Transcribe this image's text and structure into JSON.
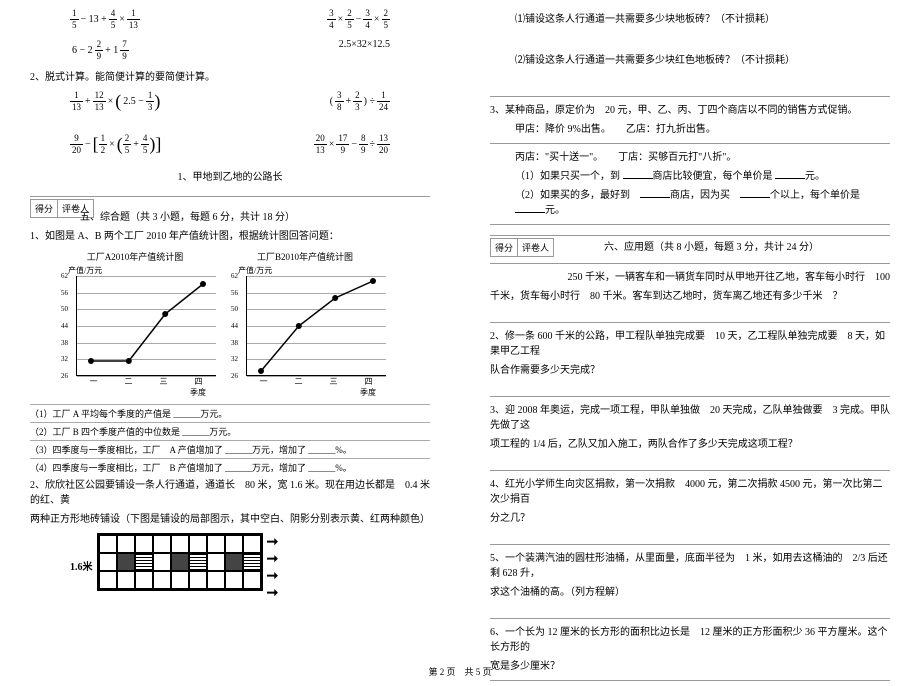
{
  "footer": "第 2 页　共 5 页",
  "left": {
    "math_rows": [
      {
        "a": {
          "parts": [
            "1/5",
            "−",
            "13",
            "+",
            "4/5",
            "×",
            "1/13"
          ]
        },
        "b": {
          "parts": [
            "3/4",
            "×",
            "2/5",
            "−",
            "3/4",
            "×",
            "2/5"
          ]
        }
      },
      {
        "a": {
          "parts": [
            "6",
            "−",
            "2",
            "2/9",
            "+",
            "1",
            "7/9"
          ]
        },
        "b": {
          "text": "2.5×32×12.5"
        }
      }
    ],
    "q2_label": "2、脱式计算。能简便计算的要简便计算。",
    "math_rows2": [
      {
        "a": {
          "parts": [
            "1/13",
            "+",
            "12/13",
            "×",
            "(",
            "2.5",
            "−",
            "1/3",
            ")"
          ]
        },
        "b": {
          "parts": [
            "(",
            "3/8",
            "+",
            "2/3",
            ")",
            "÷",
            "1/24"
          ]
        }
      },
      {
        "a": {
          "parts": [
            "9/20",
            "−",
            "[",
            "1/2",
            "×",
            "(",
            "2/5",
            "+",
            "4/5",
            ")",
            "]"
          ]
        },
        "b": {
          "parts": [
            "20/13",
            "×",
            "17/9",
            "−",
            "8/9",
            "÷",
            "13/20"
          ]
        }
      }
    ],
    "q_mid": "1、甲地到乙地的公路长",
    "score_labels": {
      "a": "得分",
      "b": "评卷人"
    },
    "section5_title": "五、综合题（共 3 小题，每题 6 分，共计 18 分）",
    "chart_q": "1、如图是 A、B 两个工厂 2010 年产值统计图，根据统计图回答问题：",
    "chartA": {
      "title": "工厂A2010年产值统计图",
      "ylabel": "产值/万元",
      "yticks": [
        "26",
        "32",
        "38",
        "44",
        "50",
        "56",
        "62"
      ],
      "xticks": [
        "一",
        "二",
        "三",
        "四"
      ],
      "xaxis": "季度",
      "points": [
        [
          0.1,
          0.15
        ],
        [
          0.37,
          0.15
        ],
        [
          0.63,
          0.62
        ],
        [
          0.9,
          0.92
        ]
      ],
      "line_color": "#000000",
      "grid_color": "#aaaaaa"
    },
    "chartB": {
      "title": "工厂B2010年产值统计图",
      "ylabel": "产值/万元",
      "yticks": [
        "26",
        "32",
        "38",
        "44",
        "50",
        "56",
        "62"
      ],
      "xticks": [
        "一",
        "二",
        "三",
        "四"
      ],
      "xaxis": "季度",
      "points": [
        [
          0.1,
          0.05
        ],
        [
          0.37,
          0.5
        ],
        [
          0.63,
          0.78
        ],
        [
          0.9,
          0.95
        ]
      ],
      "line_color": "#000000",
      "grid_color": "#aaaaaa"
    },
    "subs": [
      "（1）工厂 A 平均每个季度的产值是 ______万元。",
      "（2）工厂 B 四个季度产值的中位数是 ______万元。",
      "（3）四季度与一季度相比，工厂　A 产值增加了 ______万元，增加了 ______%。",
      "（4）四季度与一季度相比，工厂　B 产值增加了 ______万元，增加了 ______%。"
    ],
    "q_tile1": "2、欣欣社区公园要铺设一条人行通道，通道长　80 米，宽 1.6 米。现在用边长都是　0.4 米的红、黄",
    "q_tile2": "两种正方形地砖铺设（下图是铺设的局部图示，其中空白、阴影分别表示黄、红两种颜色）",
    "tile_label": "1.6米",
    "tile_pattern": [
      [
        "w",
        "w",
        "w",
        "w",
        "w",
        "w",
        "w",
        "w",
        "w"
      ],
      [
        "w",
        "d",
        "h",
        "w",
        "d",
        "h",
        "w",
        "d",
        "h"
      ],
      [
        "w",
        "w",
        "w",
        "w",
        "w",
        "w",
        "w",
        "w",
        "w"
      ]
    ]
  },
  "right": {
    "q_r1": "⑴铺设这条人行通道一共需要多少块地板砖？（不计损耗）",
    "q_r2": "⑵铺设这条人行通道一共需要多少块红色地板砖？（不计损耗）",
    "q_r3a": "3、某种商品，原定价为　20 元，甲、乙、丙、丁四个商店以不同的销售方式促销。",
    "q_r3b": "甲店：降价 9%出售。　　乙店：打九折出售。",
    "q_r3c": "丙店：\"买十送一\"。　　丁店：买够百元打\"八折\"。",
    "q_r3d": "（1）如果只买一个，到 ______商店比较便宜，每个单价是 ______元。",
    "q_r3e": "（2）如果买的多，最好到　______商店，因为买　______个以上，每个单价是　______元。",
    "score_labels": {
      "a": "得分",
      "b": "评卷人"
    },
    "section6_title": "六、应用题（共 8 小题，每题 3 分，共计 24 分）",
    "q6_1a": "250 千米，一辆客车和一辆货车同时从甲地开往乙地，客车每小时行　100",
    "q6_1b": "千米，货车每小时行　80 千米。客车到达乙地时，货车离乙地还有多少千米　？",
    "q6_2": "2、修一条 600 千米的公路，甲工程队单独完成要　10 天，乙工程队单独完成要　8 天，如果甲乙工程",
    "q6_2b": "队合作需要多少天完成？",
    "q6_3": "3、迎 2008 年奥运，完成一项工程，甲队单独做　20 天完成，乙队单独做要　3 完成。甲队先做了这",
    "q6_3b": "项工程的 1/4 后，乙队又加入施工，两队合作了多少天完成这项工程？",
    "q6_4": "4、红光小学师生向灾区捐款，第一次捐款　4000 元，第二次捐款 4500 元，第一次比第二次少捐百",
    "q6_4b": "分之几？",
    "q6_5": "5、一个装满汽油的圆柱形油桶，从里面量，底面半径为　1 米，如用去这桶油的　2/3 后还剩 628 升，",
    "q6_5b": "求这个油桶的高。（列方程解）",
    "q6_6": "6、一个长为 12 厘米的长方形的面积比边长是　12 厘米的正方形面积少 36 平方厘米。这个长方形的",
    "q6_6b": "宽是多少厘米？"
  }
}
